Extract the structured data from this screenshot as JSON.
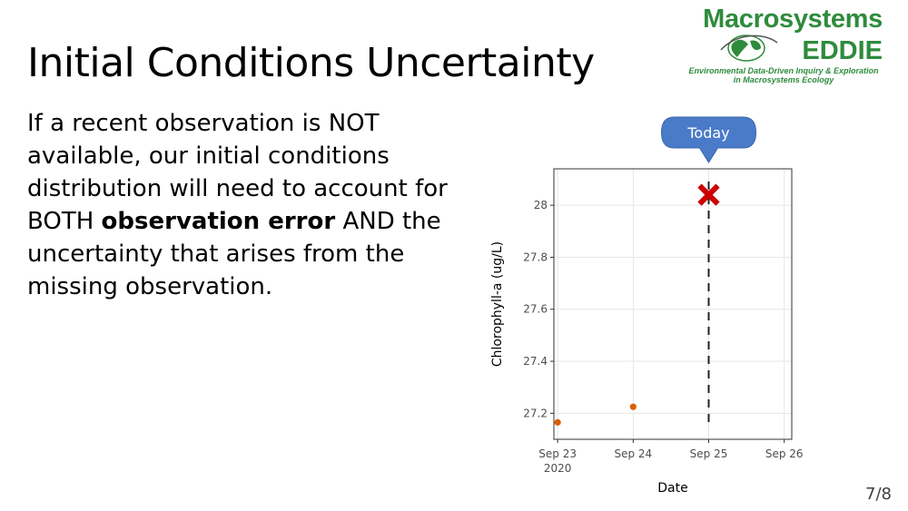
{
  "slide": {
    "title": "Initial Conditions Uncertainty",
    "body_parts": [
      "If a recent observation is NOT available, our initial conditions distribution will need to account for BOTH ",
      "observation error",
      " AND the uncertainty that arises from the missing observation."
    ],
    "page_number": "7/8"
  },
  "logo": {
    "line1": "Macrosystems",
    "line2": "EDDIE",
    "tagline1": "Environmental Data-Driven Inquiry & Exploration",
    "tagline2": "in Macrosystems Ecology",
    "color": "#2e8b3c"
  },
  "chart_data": {
    "type": "scatter",
    "xlabel": "Date",
    "ylabel": "Chlorophyll-a (ug/L)",
    "x_ticks": [
      "Sep 23\n2020",
      "Sep 24",
      "Sep 25",
      "Sep 26"
    ],
    "y_ticks": [
      "27.2",
      "27.4",
      "27.6",
      "27.8",
      "28"
    ],
    "xlim": [
      "2020-09-23",
      "2020-09-26"
    ],
    "ylim": [
      27.1,
      28.14
    ],
    "grid": true,
    "observations": [
      {
        "x": "2020-09-23",
        "y": 27.165
      },
      {
        "x": "2020-09-24",
        "y": 27.225
      }
    ],
    "missing_observation": {
      "x": "2020-09-25",
      "y": 28.04,
      "marker": "x",
      "color": "#cc0000"
    },
    "point_color": "#d95f02",
    "today_line": {
      "x": "2020-09-25",
      "style": "dashed"
    },
    "callout": {
      "text": "Today",
      "color": "#4a7bc8"
    }
  }
}
